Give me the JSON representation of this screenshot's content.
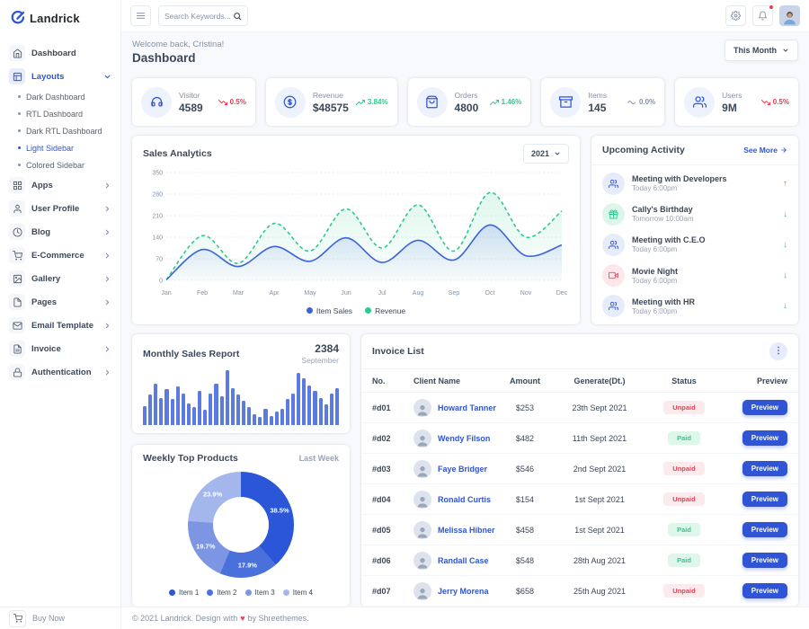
{
  "brand": {
    "name": "Landrick"
  },
  "topbar": {
    "search_placeholder": "Search Keywords..."
  },
  "sidebar": {
    "buy_now_label": "Buy Now",
    "items": [
      {
        "label": "Dashboard",
        "icon": "home"
      },
      {
        "label": "Layouts",
        "icon": "layout",
        "active": true,
        "expanded": true,
        "children": [
          {
            "label": "Dark Dashboard"
          },
          {
            "label": "RTL Dashboard"
          },
          {
            "label": "Dark RTL Dashboard"
          },
          {
            "label": "Light Sidebar",
            "active": true
          },
          {
            "label": "Colored Sidebar"
          }
        ]
      },
      {
        "label": "Apps",
        "icon": "grid",
        "has_children": true
      },
      {
        "label": "User Profile",
        "icon": "user",
        "has_children": true
      },
      {
        "label": "Blog",
        "icon": "clock",
        "has_children": true
      },
      {
        "label": "E-Commerce",
        "icon": "cart",
        "has_children": true
      },
      {
        "label": "Gallery",
        "icon": "image",
        "has_children": true
      },
      {
        "label": "Pages",
        "icon": "file",
        "has_children": true
      },
      {
        "label": "Email Template",
        "icon": "mail",
        "has_children": true
      },
      {
        "label": "Invoice",
        "icon": "file-text",
        "has_children": true
      },
      {
        "label": "Authentication",
        "icon": "lock",
        "has_children": true
      }
    ]
  },
  "header": {
    "welcome": "Welcome back, Cristina!",
    "title": "Dashboard",
    "period_selector": "This Month"
  },
  "stats": [
    {
      "label": "Visitor",
      "value": "4589",
      "change": "0.5%",
      "trend": "down",
      "icon": "headset"
    },
    {
      "label": "Revenue",
      "value": "$48575",
      "change": "3.84%",
      "trend": "up",
      "icon": "dollar"
    },
    {
      "label": "Orders",
      "value": "4800",
      "change": "1.46%",
      "trend": "up",
      "icon": "bag"
    },
    {
      "label": "Items",
      "value": "145",
      "change": "0.0%",
      "trend": "flat",
      "icon": "archive"
    },
    {
      "label": "Users",
      "value": "9M",
      "change": "0.5%",
      "trend": "down",
      "icon": "users"
    }
  ],
  "activity": {
    "title": "Upcoming Activity",
    "see_more_label": "See More",
    "items": [
      {
        "title": "Meeting with Developers",
        "time": "Today 6:00pm",
        "icon": "users",
        "tone": "blue",
        "trend": "up"
      },
      {
        "title": "Cally's Birthday",
        "time": "Tomorrow 10:00am",
        "icon": "gift",
        "tone": "green",
        "trend": "down"
      },
      {
        "title": "Meeting with C.E.O",
        "time": "Today 6:00pm",
        "icon": "users",
        "tone": "blue",
        "trend": "down"
      },
      {
        "title": "Movie Night",
        "time": "Today 6:00pm",
        "icon": "video",
        "tone": "red",
        "trend": "down"
      },
      {
        "title": "Meeting with HR",
        "time": "Today 6:00pm",
        "icon": "users",
        "tone": "blue",
        "trend": "down"
      }
    ]
  },
  "invoice": {
    "title": "Invoice List",
    "columns": [
      "No.",
      "Client Name",
      "Amount",
      "Generate(Dt.)",
      "Status",
      "Preview"
    ],
    "preview_label": "Preview",
    "rows": [
      {
        "no": "#d01",
        "client": "Howard Tanner",
        "amount": "$253",
        "date": "23th Sept 2021",
        "status": "Unpaid"
      },
      {
        "no": "#d02",
        "client": "Wendy Filson",
        "amount": "$482",
        "date": "11th Sept 2021",
        "status": "Paid"
      },
      {
        "no": "#d03",
        "client": "Faye Bridger",
        "amount": "$546",
        "date": "2nd Sept 2021",
        "status": "Unpaid"
      },
      {
        "no": "#d04",
        "client": "Ronald Curtis",
        "amount": "$154",
        "date": "1st Sept 2021",
        "status": "Unpaid"
      },
      {
        "no": "#d05",
        "client": "Melissa Hibner",
        "amount": "$458",
        "date": "1st Sept 2021",
        "status": "Paid"
      },
      {
        "no": "#d06",
        "client": "Randall Case",
        "amount": "$548",
        "date": "28th Aug 2021",
        "status": "Paid"
      },
      {
        "no": "#d07",
        "client": "Jerry Morena",
        "amount": "$658",
        "date": "25th Aug 2021",
        "status": "Unpaid"
      }
    ]
  },
  "footer": {
    "copyright_prefix": "© 2021 Landrick. Design with",
    "heart": "♥",
    "copyright_suffix": "by Shreethemes."
  },
  "colors": {
    "primary": "#2f55d4",
    "success": "#2eca8b",
    "danger": "#e43f52",
    "warning": "#f17425",
    "muted": "#8492a6",
    "dark": "#3c4858"
  },
  "chart_data": [
    {
      "id": "sales_analytics",
      "type": "line",
      "title": "Sales Analytics",
      "year_selector": "2021",
      "x": [
        "Jan",
        "Feb",
        "Mar",
        "Apr",
        "May",
        "Jun",
        "Jul",
        "Aug",
        "Sep",
        "Oct",
        "Nov",
        "Dec"
      ],
      "ylim": [
        0,
        350
      ],
      "yticks": [
        350,
        280,
        210,
        140,
        70,
        0
      ],
      "grid": true,
      "legend_position": "bottom",
      "series": [
        {
          "name": "Item Sales",
          "color": "#3b63d9",
          "style": "solid",
          "values": [
            2,
            100,
            45,
            110,
            62,
            138,
            58,
            130,
            66,
            180,
            80,
            115
          ]
        },
        {
          "name": "Revenue",
          "color": "#2eca8b",
          "style": "dashed",
          "values": [
            2,
            145,
            55,
            185,
            95,
            232,
            105,
            245,
            95,
            285,
            140,
            225
          ]
        }
      ]
    },
    {
      "id": "monthly_sales_report",
      "type": "bar",
      "title": "Monthly Sales Report",
      "value_label": "2384",
      "period_label": "September",
      "bar_color": "#5b7ae2",
      "values": [
        35,
        55,
        75,
        50,
        65,
        48,
        70,
        58,
        40,
        32,
        62,
        28,
        58,
        75,
        52,
        100,
        68,
        55,
        45,
        32,
        20,
        14,
        30,
        16,
        24,
        30,
        48,
        58,
        95,
        85,
        72,
        62,
        50,
        38,
        58,
        68
      ]
    },
    {
      "id": "weekly_top_products",
      "type": "pie",
      "title": "Weekly Top Products",
      "period_label": "Last Week",
      "labels": [
        "Item 1",
        "Item 2",
        "Item 3",
        "Item 4"
      ],
      "values": [
        38.5,
        17.9,
        19.7,
        23.9
      ],
      "colors": [
        "#2c56d8",
        "#4a70dc",
        "#7d96e4",
        "#a4b7ed"
      ]
    }
  ]
}
